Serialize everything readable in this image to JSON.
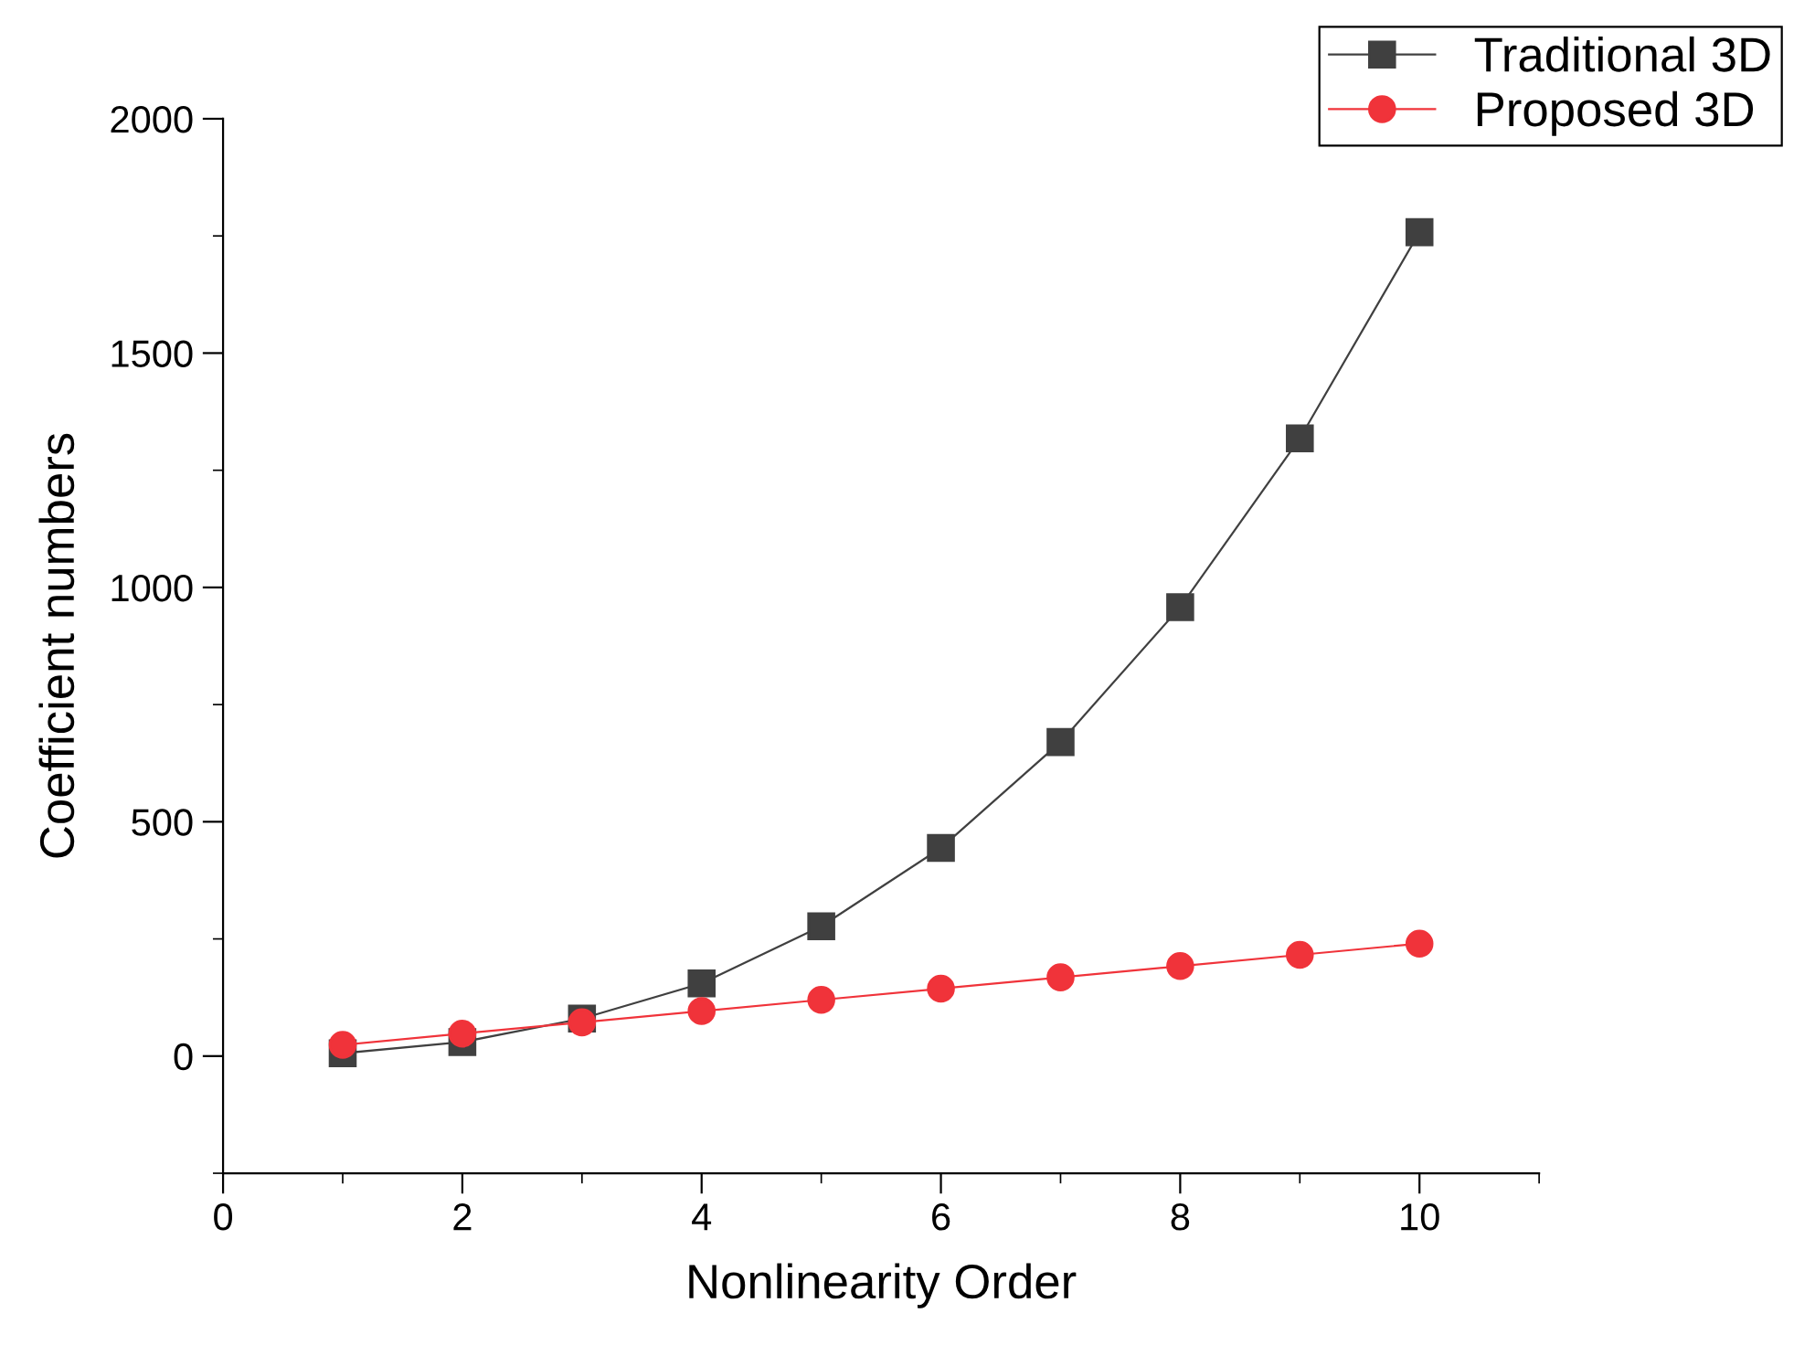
{
  "chart_data": {
    "type": "line",
    "xlabel": "Nonlinearity Order",
    "ylabel": "Coefficient numbers",
    "x": [
      1,
      2,
      3,
      4,
      5,
      6,
      7,
      8,
      9,
      10
    ],
    "series": [
      {
        "name": "Traditional 3D",
        "color": "#404040",
        "marker": "square",
        "values": [
          6,
          30,
          80,
          155,
          277,
          444,
          670,
          958,
          1318,
          1758
        ]
      },
      {
        "name": "Proposed 3D",
        "color": "#f0333a",
        "marker": "circle",
        "values": [
          24,
          48,
          72,
          96,
          120,
          144,
          168,
          192,
          216,
          240
        ]
      }
    ],
    "xlim": [
      0,
      11
    ],
    "xticks": [
      0,
      2,
      4,
      6,
      8,
      10
    ],
    "ylim": [
      -250,
      2000
    ],
    "yticks": [
      0,
      500,
      1000,
      1500,
      2000
    ],
    "grid": false,
    "legend": "top right",
    "line_style": "solid"
  }
}
